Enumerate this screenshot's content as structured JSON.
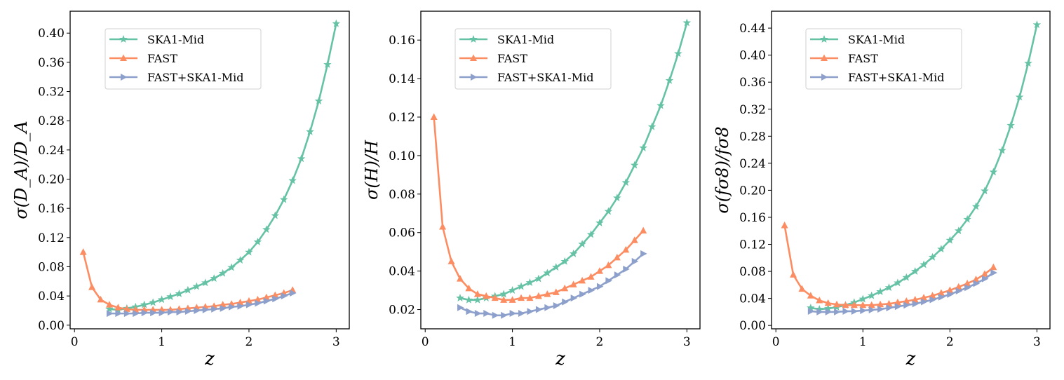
{
  "chart_data": [
    {
      "type": "line",
      "title": "",
      "xlabel": "z",
      "ylabel": "σ(D_A)/D_A",
      "xlim": [
        -0.05,
        3.15
      ],
      "ylim": [
        -0.005,
        0.43
      ],
      "xticks": [
        0,
        1,
        2,
        3
      ],
      "xtick_labels": [
        "0",
        "1",
        "2",
        "3"
      ],
      "yticks": [
        0.0,
        0.04,
        0.08,
        0.12,
        0.16,
        0.2,
        0.24,
        0.28,
        0.32,
        0.36,
        0.4
      ],
      "ytick_labels": [
        "0.00",
        "0.04",
        "0.08",
        "0.12",
        "0.16",
        "0.20",
        "0.24",
        "0.28",
        "0.32",
        "0.36",
        "0.40"
      ],
      "grid": false,
      "legend_position": "top-left",
      "series": [
        {
          "name": "SKA1-Mid",
          "color": "#66c2a5",
          "marker": "star",
          "x": [
            0.4,
            0.5,
            0.6,
            0.7,
            0.8,
            0.9,
            1.0,
            1.1,
            1.2,
            1.3,
            1.4,
            1.5,
            1.6,
            1.7,
            1.8,
            1.9,
            2.0,
            2.1,
            2.2,
            2.3,
            2.4,
            2.5,
            2.6,
            2.7,
            2.8,
            2.9,
            3.0
          ],
          "values": [
            0.022,
            0.021,
            0.023,
            0.025,
            0.028,
            0.031,
            0.035,
            0.039,
            0.043,
            0.048,
            0.053,
            0.058,
            0.064,
            0.071,
            0.079,
            0.089,
            0.1,
            0.114,
            0.131,
            0.15,
            0.172,
            0.198,
            0.228,
            0.265,
            0.307,
            0.357,
            0.413
          ]
        },
        {
          "name": "FAST",
          "color": "#fc8d62",
          "marker": "triangle-up",
          "x": [
            0.1,
            0.2,
            0.3,
            0.4,
            0.5,
            0.6,
            0.7,
            0.8,
            0.9,
            1.0,
            1.1,
            1.2,
            1.3,
            1.4,
            1.5,
            1.6,
            1.7,
            1.8,
            1.9,
            2.0,
            2.1,
            2.2,
            2.3,
            2.4,
            2.5
          ],
          "values": [
            0.1,
            0.052,
            0.035,
            0.028,
            0.024,
            0.022,
            0.021,
            0.021,
            0.021,
            0.021,
            0.021,
            0.022,
            0.023,
            0.024,
            0.025,
            0.026,
            0.028,
            0.029,
            0.031,
            0.033,
            0.035,
            0.038,
            0.041,
            0.044,
            0.048
          ]
        },
        {
          "name": "FAST+SKA1-Mid",
          "color": "#8da0cb",
          "marker": "triangle-right",
          "x": [
            0.4,
            0.5,
            0.6,
            0.7,
            0.8,
            0.9,
            1.0,
            1.1,
            1.2,
            1.3,
            1.4,
            1.5,
            1.6,
            1.7,
            1.8,
            1.9,
            2.0,
            2.1,
            2.2,
            2.3,
            2.4,
            2.5
          ],
          "values": [
            0.016,
            0.016,
            0.016,
            0.016,
            0.017,
            0.017,
            0.017,
            0.018,
            0.018,
            0.019,
            0.02,
            0.021,
            0.022,
            0.023,
            0.025,
            0.026,
            0.028,
            0.03,
            0.033,
            0.036,
            0.04,
            0.044
          ]
        }
      ]
    },
    {
      "type": "line",
      "title": "",
      "xlabel": "z",
      "ylabel": "σ(H)/H",
      "xlim": [
        -0.05,
        3.15
      ],
      "ylim": [
        0.01,
        0.175
      ],
      "xticks": [
        0,
        1,
        2,
        3
      ],
      "xtick_labels": [
        "0",
        "1",
        "2",
        "3"
      ],
      "yticks": [
        0.02,
        0.04,
        0.06,
        0.08,
        0.1,
        0.12,
        0.14,
        0.16
      ],
      "ytick_labels": [
        "0.02",
        "0.04",
        "0.06",
        "0.08",
        "0.10",
        "0.12",
        "0.14",
        "0.16"
      ],
      "grid": false,
      "legend_position": "top-left",
      "series": [
        {
          "name": "SKA1-Mid",
          "color": "#66c2a5",
          "marker": "star",
          "x": [
            0.4,
            0.5,
            0.6,
            0.7,
            0.8,
            0.9,
            1.0,
            1.1,
            1.2,
            1.3,
            1.4,
            1.5,
            1.6,
            1.7,
            1.8,
            1.9,
            2.0,
            2.1,
            2.2,
            2.3,
            2.4,
            2.5,
            2.6,
            2.7,
            2.8,
            2.9,
            3.0
          ],
          "values": [
            0.026,
            0.025,
            0.025,
            0.026,
            0.027,
            0.028,
            0.03,
            0.032,
            0.034,
            0.036,
            0.039,
            0.042,
            0.045,
            0.049,
            0.054,
            0.059,
            0.065,
            0.071,
            0.078,
            0.086,
            0.095,
            0.104,
            0.115,
            0.126,
            0.139,
            0.153,
            0.169
          ]
        },
        {
          "name": "FAST",
          "color": "#fc8d62",
          "marker": "triangle-up",
          "x": [
            0.1,
            0.2,
            0.3,
            0.4,
            0.5,
            0.6,
            0.7,
            0.8,
            0.9,
            1.0,
            1.1,
            1.2,
            1.3,
            1.4,
            1.5,
            1.6,
            1.7,
            1.8,
            1.9,
            2.0,
            2.1,
            2.2,
            2.3,
            2.4,
            2.5
          ],
          "values": [
            0.12,
            0.063,
            0.045,
            0.036,
            0.031,
            0.028,
            0.027,
            0.026,
            0.025,
            0.025,
            0.026,
            0.026,
            0.027,
            0.028,
            0.029,
            0.031,
            0.033,
            0.035,
            0.037,
            0.04,
            0.043,
            0.047,
            0.051,
            0.056,
            0.061
          ]
        },
        {
          "name": "FAST+SKA1-Mid",
          "color": "#8da0cb",
          "marker": "triangle-right",
          "x": [
            0.4,
            0.5,
            0.6,
            0.7,
            0.8,
            0.9,
            1.0,
            1.1,
            1.2,
            1.3,
            1.4,
            1.5,
            1.6,
            1.7,
            1.8,
            1.9,
            2.0,
            2.1,
            2.2,
            2.3,
            2.4,
            2.5
          ],
          "values": [
            0.021,
            0.019,
            0.018,
            0.018,
            0.017,
            0.017,
            0.018,
            0.018,
            0.019,
            0.02,
            0.021,
            0.022,
            0.024,
            0.026,
            0.028,
            0.03,
            0.032,
            0.035,
            0.038,
            0.041,
            0.045,
            0.049
          ]
        }
      ]
    },
    {
      "type": "line",
      "title": "",
      "xlabel": "z",
      "ylabel": "σ(fσ8)/fσ8",
      "xlim": [
        -0.05,
        3.15
      ],
      "ylim": [
        -0.005,
        0.465
      ],
      "xticks": [
        0,
        1,
        2,
        3
      ],
      "xtick_labels": [
        "0",
        "1",
        "2",
        "3"
      ],
      "yticks": [
        0.0,
        0.04,
        0.08,
        0.12,
        0.16,
        0.2,
        0.24,
        0.28,
        0.32,
        0.36,
        0.4,
        0.44
      ],
      "ytick_labels": [
        "0.00",
        "0.04",
        "0.08",
        "0.12",
        "0.16",
        "0.20",
        "0.24",
        "0.28",
        "0.32",
        "0.36",
        "0.40",
        "0.44"
      ],
      "grid": false,
      "legend_position": "top-left",
      "series": [
        {
          "name": "SKA1-Mid",
          "color": "#66c2a5",
          "marker": "star",
          "x": [
            0.4,
            0.5,
            0.6,
            0.7,
            0.8,
            0.9,
            1.0,
            1.1,
            1.2,
            1.3,
            1.4,
            1.5,
            1.6,
            1.7,
            1.8,
            1.9,
            2.0,
            2.1,
            2.2,
            2.3,
            2.4,
            2.5,
            2.6,
            2.7,
            2.8,
            2.9,
            3.0
          ],
          "values": [
            0.026,
            0.024,
            0.025,
            0.027,
            0.03,
            0.034,
            0.039,
            0.044,
            0.05,
            0.056,
            0.063,
            0.071,
            0.08,
            0.09,
            0.101,
            0.113,
            0.126,
            0.14,
            0.157,
            0.176,
            0.199,
            0.227,
            0.259,
            0.296,
            0.338,
            0.388,
            0.445
          ]
        },
        {
          "name": "FAST",
          "color": "#fc8d62",
          "marker": "triangle-up",
          "x": [
            0.1,
            0.2,
            0.3,
            0.4,
            0.5,
            0.6,
            0.7,
            0.8,
            0.9,
            1.0,
            1.1,
            1.2,
            1.3,
            1.4,
            1.5,
            1.6,
            1.7,
            1.8,
            1.9,
            2.0,
            2.1,
            2.2,
            2.3,
            2.4,
            2.5
          ],
          "values": [
            0.148,
            0.075,
            0.054,
            0.044,
            0.037,
            0.033,
            0.031,
            0.03,
            0.03,
            0.03,
            0.03,
            0.031,
            0.032,
            0.034,
            0.036,
            0.038,
            0.041,
            0.044,
            0.048,
            0.052,
            0.057,
            0.062,
            0.068,
            0.076,
            0.086
          ]
        },
        {
          "name": "FAST+SKA1-Mid",
          "color": "#8da0cb",
          "marker": "triangle-right",
          "x": [
            0.4,
            0.5,
            0.6,
            0.7,
            0.8,
            0.9,
            1.0,
            1.1,
            1.2,
            1.3,
            1.4,
            1.5,
            1.6,
            1.7,
            1.8,
            1.9,
            2.0,
            2.1,
            2.2,
            2.3,
            2.4,
            2.5
          ],
          "values": [
            0.021,
            0.02,
            0.02,
            0.02,
            0.021,
            0.021,
            0.022,
            0.023,
            0.024,
            0.026,
            0.028,
            0.03,
            0.032,
            0.035,
            0.038,
            0.042,
            0.046,
            0.051,
            0.056,
            0.062,
            0.069,
            0.078
          ]
        }
      ]
    }
  ]
}
